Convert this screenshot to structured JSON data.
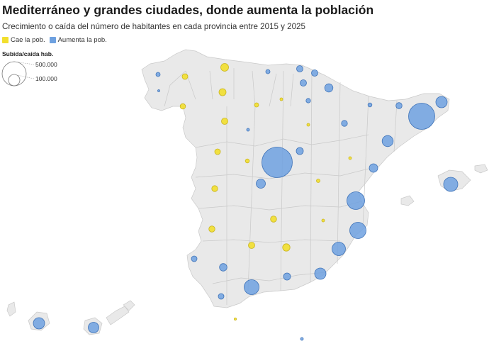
{
  "title": "Mediterráneo y grandes ciudades, donde aumenta la población",
  "subtitle": "Crecimiento o caída del número de habitantes en cada provincia entre 2015 y 2025",
  "legend": {
    "items": [
      {
        "label": "Cae la pob.",
        "color": "#f2df2e"
      },
      {
        "label": "Aumenta la pob.",
        "color": "#6ea1e0"
      }
    ],
    "size_title": "Subida/caída hab.",
    "size_items": [
      {
        "label": "500.000",
        "value": 500000
      },
      {
        "label": "100.000",
        "value": 100000
      }
    ]
  },
  "colors": {
    "land": "#e9e9e9",
    "border": "#c9c9c9",
    "decrease_fill": "#f2df2e",
    "decrease_stroke": "#c9b520",
    "increase_fill": "#6ea1e0",
    "increase_stroke": "#3f73b8"
  }
}
